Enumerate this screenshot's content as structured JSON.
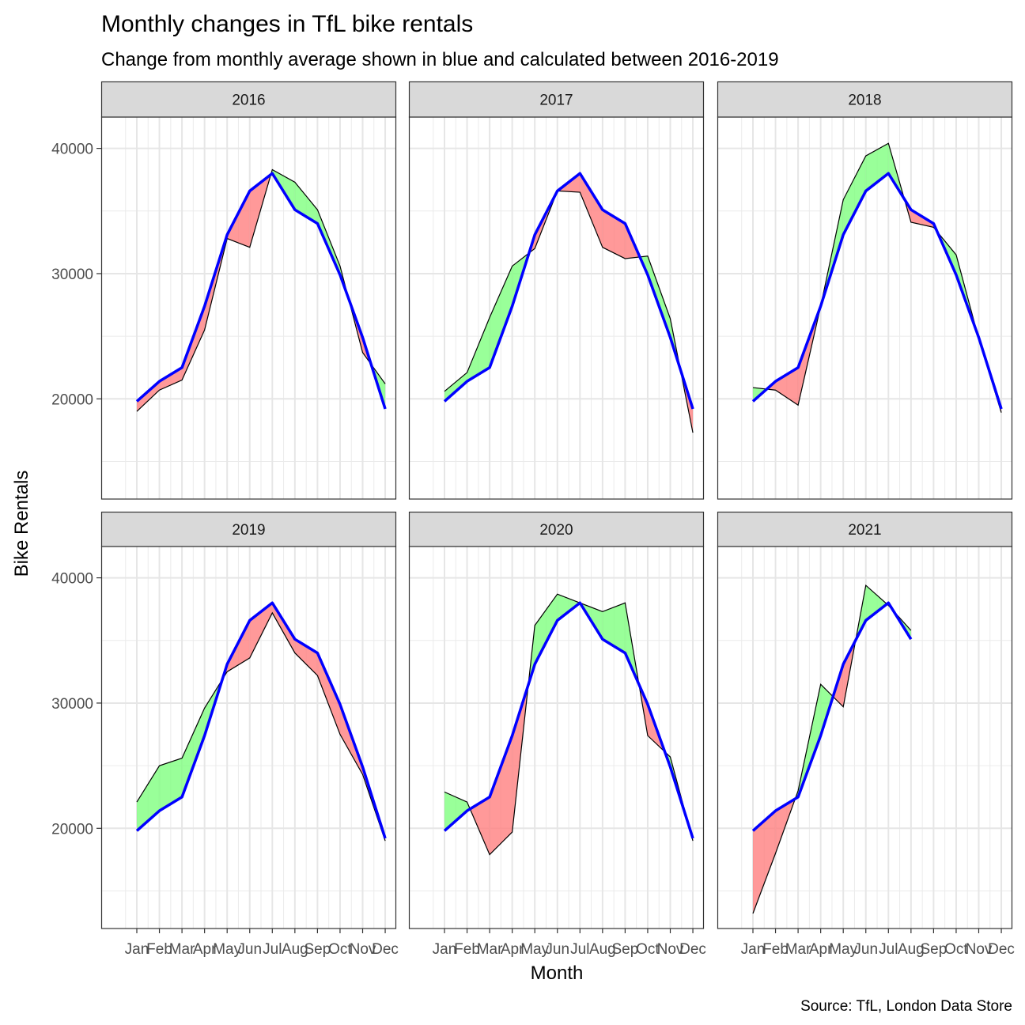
{
  "chart_data": {
    "type": "line",
    "title": "Monthly changes in TfL bike rentals",
    "subtitle": "Change from monthly average shown in blue and calculated between 2016-2019",
    "xlabel": "Month",
    "ylabel": "Bike Rentals",
    "caption": "Source: TfL, London Data Store",
    "categories": [
      "Jan",
      "Feb",
      "Mar",
      "Apr",
      "May",
      "Jun",
      "Jul",
      "Aug",
      "Sep",
      "Oct",
      "Nov",
      "Dec"
    ],
    "ylim": [
      12000,
      42500
    ],
    "y_ticks": [
      20000,
      30000,
      40000
    ],
    "grid": true,
    "colors": {
      "above": "#80ff80",
      "below": "#ff8080",
      "average_line": "#0000ff"
    },
    "monthly_average": [
      19800,
      21400,
      22500,
      27400,
      33100,
      36600,
      38000,
      35100,
      34000,
      29900,
      24900,
      19200
    ],
    "facets": [
      {
        "year": "2016",
        "values": [
          19000,
          20700,
          21500,
          25500,
          32800,
          32100,
          38300,
          37300,
          35100,
          30600,
          23700,
          21200
        ]
      },
      {
        "year": "2017",
        "values": [
          20600,
          22100,
          26500,
          30600,
          32000,
          36600,
          36500,
          32100,
          31200,
          31400,
          26400,
          17300
        ]
      },
      {
        "year": "2018",
        "values": [
          20900,
          20700,
          19500,
          27400,
          35900,
          39400,
          40400,
          34100,
          33700,
          31500,
          24800,
          18900
        ]
      },
      {
        "year": "2019",
        "values": [
          22100,
          25000,
          25600,
          29600,
          32500,
          33600,
          37200,
          34000,
          32200,
          27500,
          24300,
          19000
        ]
      },
      {
        "year": "2020",
        "values": [
          22900,
          22100,
          17900,
          19700,
          36200,
          38700,
          38000,
          37300,
          38000,
          27400,
          25700,
          19000
        ]
      },
      {
        "year": "2021",
        "values": [
          13200,
          18000,
          23000,
          31500,
          29700,
          39400,
          37800,
          35800
        ]
      }
    ]
  }
}
